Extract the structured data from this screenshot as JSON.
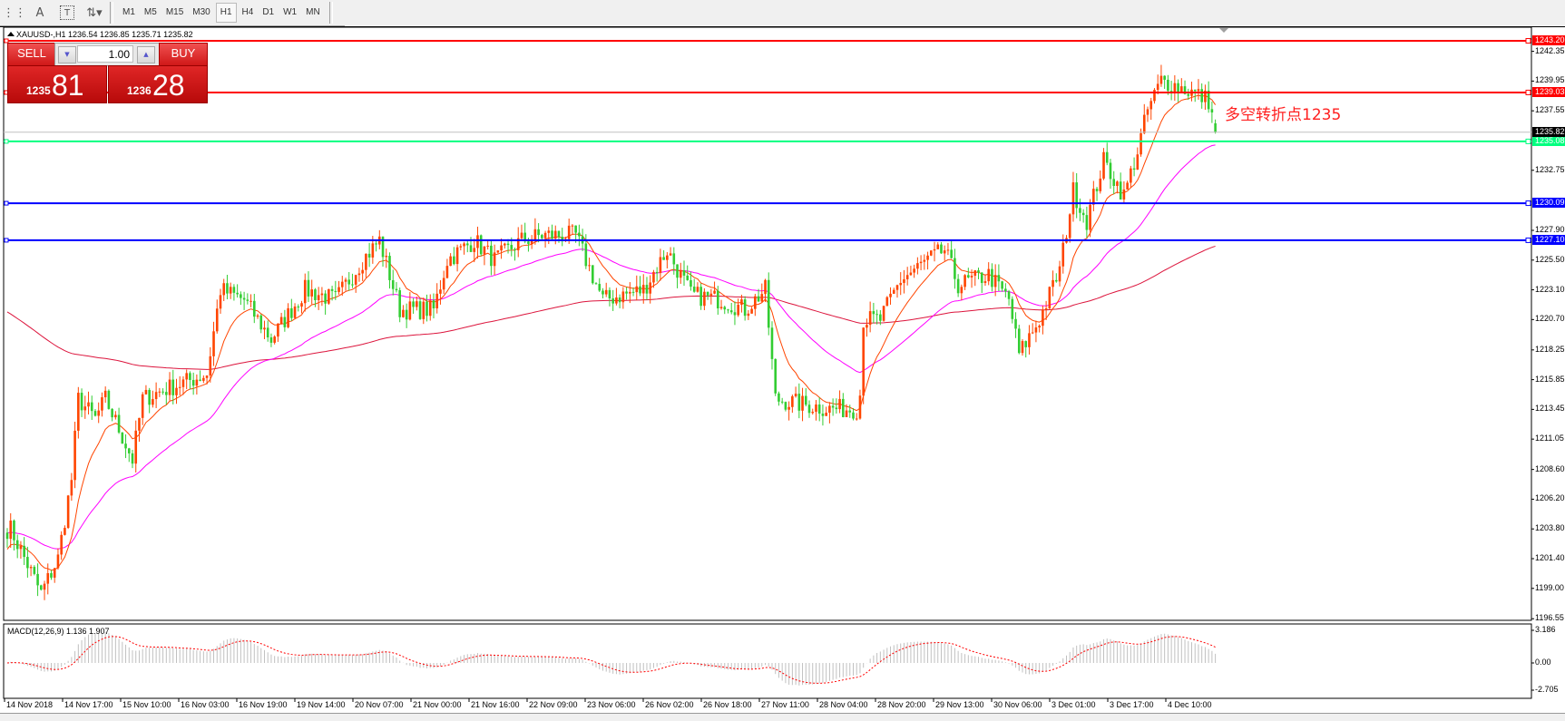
{
  "toolbar": {
    "icons": [
      "grid-icon",
      "text-icon",
      "text-label-icon",
      "arrows-icon"
    ],
    "timeframes": [
      "M1",
      "M5",
      "M15",
      "M30",
      "H1",
      "H4",
      "D1",
      "W1",
      "MN"
    ],
    "active_timeframe": "H1"
  },
  "chart": {
    "header": "XAUUSD-,H1  1236.54 1236.85 1235.71 1235.82",
    "annotation": "多空转折点1235",
    "bid_line": 1235.82
  },
  "trade_panel": {
    "sell_label": "SELL",
    "buy_label": "BUY",
    "lot": "1.00",
    "sell_small": "1235",
    "sell_big": "81",
    "buy_small": "1236",
    "buy_big": "28"
  },
  "chart_data": {
    "type": "candlestick",
    "symbol": "XAUUSD-",
    "timeframe": "H1",
    "ylim": [
      1196.55,
      1243.2
    ],
    "y_ticks": [
      "1242.35",
      "1239.95",
      "1237.55",
      "1232.75",
      "1227.90",
      "1225.50",
      "1223.10",
      "1220.70",
      "1218.25",
      "1215.85",
      "1213.45",
      "1211.05",
      "1208.60",
      "1206.20",
      "1203.80",
      "1201.40",
      "1199.00",
      "1196.55"
    ],
    "x_ticks": [
      "14 Nov 2018",
      "14 Nov 17:00",
      "15 Nov 10:00",
      "16 Nov 03:00",
      "16 Nov 19:00",
      "19 Nov 14:00",
      "20 Nov 07:00",
      "21 Nov 00:00",
      "21 Nov 16:00",
      "22 Nov 09:00",
      "23 Nov 06:00",
      "26 Nov 02:00",
      "26 Nov 18:00",
      "27 Nov 11:00",
      "28 Nov 04:00",
      "28 Nov 20:00",
      "29 Nov 13:00",
      "30 Nov 06:00",
      "3 Dec 01:00",
      "3 Dec 17:00",
      "4 Dec 10:00"
    ],
    "last_bar": {
      "open": 1236.54,
      "high": 1236.85,
      "low": 1235.71,
      "close": 1235.82
    },
    "approx_close_path": [
      [
        1,
        1203.8
      ],
      [
        10,
        1198.6
      ],
      [
        15,
        1201.4
      ],
      [
        19,
        1207.8
      ],
      [
        21,
        1214.3
      ],
      [
        26,
        1212.7
      ],
      [
        29,
        1214.3
      ],
      [
        37,
        1209.4
      ],
      [
        40,
        1214.3
      ],
      [
        47,
        1215.1
      ],
      [
        59,
        1216.3
      ],
      [
        63,
        1223.1
      ],
      [
        70,
        1222.3
      ],
      [
        78,
        1219.1
      ],
      [
        88,
        1223.1
      ],
      [
        97,
        1222.3
      ],
      [
        105,
        1225.5
      ],
      [
        110,
        1227.1
      ],
      [
        116,
        1221.5
      ],
      [
        126,
        1221.5
      ],
      [
        130,
        1225.5
      ],
      [
        138,
        1227.1
      ],
      [
        144,
        1225.5
      ],
      [
        152,
        1227.1
      ],
      [
        158,
        1227.5
      ],
      [
        168,
        1227.5
      ],
      [
        171,
        1225.5
      ],
      [
        176,
        1222.3
      ],
      [
        188,
        1223.1
      ],
      [
        195,
        1226.3
      ],
      [
        202,
        1222.7
      ],
      [
        211,
        1222.3
      ],
      [
        218,
        1221.5
      ],
      [
        224,
        1223.1
      ],
      [
        227,
        1214.3
      ],
      [
        234,
        1213.9
      ],
      [
        243,
        1213.5
      ],
      [
        251,
        1213.5
      ],
      [
        252,
        1214.7
      ],
      [
        253,
        1220.7
      ],
      [
        258,
        1220.7
      ],
      [
        264,
        1223.9
      ],
      [
        272,
        1225.5
      ],
      [
        277,
        1226.3
      ],
      [
        281,
        1223.5
      ],
      [
        290,
        1224.3
      ],
      [
        296,
        1222.3
      ],
      [
        299,
        1217.9
      ],
      [
        305,
        1220.7
      ],
      [
        311,
        1224.7
      ],
      [
        315,
        1231.1
      ],
      [
        319,
        1228.7
      ],
      [
        324,
        1233.5
      ],
      [
        330,
        1230.7
      ],
      [
        334,
        1234.3
      ],
      [
        337,
        1237.6
      ],
      [
        341,
        1240.0
      ],
      [
        349,
        1239.2
      ],
      [
        355,
        1238.4
      ],
      [
        357,
        1235.82
      ]
    ],
    "horizontal_lines": [
      {
        "price": "1243.20",
        "color": "#ff0000"
      },
      {
        "price": "1239.03",
        "color": "#ff0000"
      },
      {
        "price": "1235.08",
        "color": "#00ff7f"
      },
      {
        "price": "1230.09",
        "color": "#0000ff"
      },
      {
        "price": "1227.10",
        "color": "#0000ff"
      }
    ],
    "colors": {
      "bull": "#ff4500",
      "bear": "#32cd32",
      "ma_fast": "#ff4500",
      "ma_mid": "#ff00ff",
      "ma_slow": "#dc143c",
      "macd_hist": "#c0c0c0",
      "macd_signal": "#ff0000"
    },
    "macd": {
      "label": "MACD(12,26,9) 1.136 1.907",
      "y_ticks": [
        "3.186",
        "0.00",
        "-2.705"
      ],
      "ylim": [
        -2.705,
        3.186
      ]
    }
  }
}
